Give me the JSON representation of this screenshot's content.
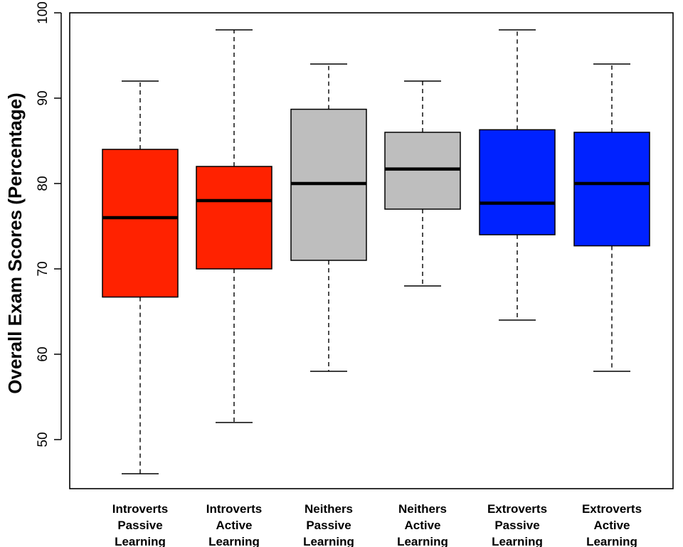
{
  "chart_data": {
    "type": "boxplot",
    "title": "",
    "xlabel": "",
    "ylabel": "Overall Exam Scores (Percentage)",
    "ylim": [
      45,
      100
    ],
    "yticks": [
      "50",
      "60",
      "70",
      "80",
      "90",
      "100"
    ],
    "grid": false,
    "categories": [
      [
        "Introverts",
        "Passive",
        "Learning"
      ],
      [
        "Introverts",
        "Active",
        "Learning"
      ],
      [
        "Neithers",
        "Passive",
        "Learning"
      ],
      [
        "Neithers",
        "Active",
        "Learning"
      ],
      [
        "Extroverts",
        "Passive",
        "Learning"
      ],
      [
        "Extroverts",
        "Active",
        "Learning"
      ]
    ],
    "boxes": [
      {
        "min": 46,
        "q1": 66.7,
        "median": 76,
        "q3": 84,
        "max": 92,
        "color": "#ff2200"
      },
      {
        "min": 52,
        "q1": 70,
        "median": 78,
        "q3": 82,
        "max": 98,
        "color": "#ff2200"
      },
      {
        "min": 58,
        "q1": 71,
        "median": 80,
        "q3": 88.7,
        "max": 94,
        "color": "#bebebe"
      },
      {
        "min": 68,
        "q1": 77,
        "median": 81.7,
        "q3": 86,
        "max": 92,
        "color": "#bebebe"
      },
      {
        "min": 64,
        "q1": 74,
        "median": 77.7,
        "q3": 86.3,
        "max": 98,
        "color": "#0022ff"
      },
      {
        "min": 58,
        "q1": 72.7,
        "median": 80,
        "q3": 86,
        "max": 94,
        "color": "#0022ff"
      }
    ]
  }
}
